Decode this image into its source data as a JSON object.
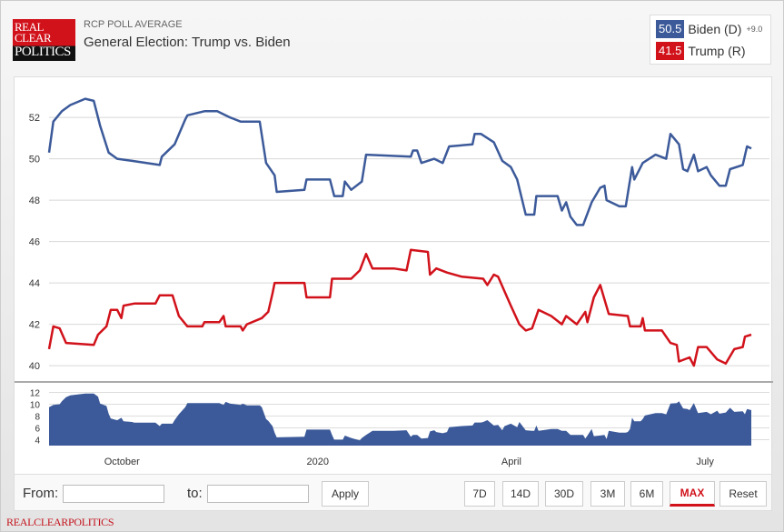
{
  "header": {
    "logo_lines": [
      "REAL",
      "CLEAR",
      "POLITICS"
    ],
    "kicker": "RCP POLL AVERAGE",
    "title": "General Election: Trump vs. Biden"
  },
  "legend": [
    {
      "value": "50.5",
      "name": "Biden (D)",
      "spread": "+9.0",
      "color": "#3c5a9a"
    },
    {
      "value": "41.5",
      "name": "Trump (R)",
      "color": "#d1121b"
    }
  ],
  "controls": {
    "from_label": "From:",
    "to_label": "to:",
    "from_value": "",
    "to_value": "",
    "apply": "Apply",
    "ranges": [
      "7D",
      "14D",
      "30D",
      "3M",
      "6M",
      "MAX",
      "Reset"
    ],
    "active": "MAX"
  },
  "footer": "REALCLEARPOLITICS",
  "chart_data": {
    "type": "line",
    "title": "",
    "xlabel": "",
    "ylabel": "",
    "ylim": [
      39.3,
      53.5
    ],
    "yticks": [
      40,
      42,
      44,
      46,
      48,
      50,
      52
    ],
    "xticks": [
      {
        "date": "2019-10-01",
        "label": "October"
      },
      {
        "date": "2020-01-01",
        "label": "2020"
      },
      {
        "date": "2020-04-01",
        "label": "April"
      },
      {
        "date": "2020-07-01",
        "label": "July"
      }
    ],
    "xlim": [
      "2019-09-01",
      "2020-07-27"
    ],
    "grid": true,
    "navigator": {
      "type": "area",
      "quantity": "Biden minus Trump spread",
      "yticks": [
        4,
        6,
        8,
        10,
        12
      ],
      "ylim": [
        3,
        13
      ],
      "color": "#3c5a9a"
    },
    "series": [
      {
        "name": "Biden (D)",
        "color": "#3c5a9a",
        "points": [
          [
            "2019-09-01",
            50.3
          ],
          [
            "2019-09-03",
            51.8
          ],
          [
            "2019-09-07",
            52.3
          ],
          [
            "2019-09-11",
            52.6
          ],
          [
            "2019-09-18",
            52.9
          ],
          [
            "2019-09-22",
            52.8
          ],
          [
            "2019-09-25",
            51.6
          ],
          [
            "2019-09-29",
            50.3
          ],
          [
            "2019-10-03",
            50.0
          ],
          [
            "2019-10-10",
            49.9
          ],
          [
            "2019-10-23",
            49.7
          ],
          [
            "2019-10-24",
            50.1
          ],
          [
            "2019-10-30",
            50.7
          ],
          [
            "2019-11-04",
            51.9
          ],
          [
            "2019-11-05",
            52.1
          ],
          [
            "2019-11-13",
            52.3
          ],
          [
            "2019-11-19",
            52.3
          ],
          [
            "2019-11-25",
            52.0
          ],
          [
            "2019-11-30",
            51.8
          ],
          [
            "2019-12-09",
            51.8
          ],
          [
            "2019-12-12",
            49.8
          ],
          [
            "2019-12-16",
            49.2
          ],
          [
            "2019-12-17",
            48.4
          ],
          [
            "2019-12-30",
            48.5
          ],
          [
            "2019-12-31",
            49.0
          ],
          [
            "2020-01-11",
            49.0
          ],
          [
            "2020-01-13",
            48.2
          ],
          [
            "2020-01-17",
            48.2
          ],
          [
            "2020-01-18",
            48.9
          ],
          [
            "2020-01-21",
            48.5
          ],
          [
            "2020-01-26",
            48.9
          ],
          [
            "2020-01-28",
            50.2
          ],
          [
            "2020-02-18",
            50.1
          ],
          [
            "2020-02-19",
            50.4
          ],
          [
            "2020-02-21",
            50.4
          ],
          [
            "2020-02-23",
            49.8
          ],
          [
            "2020-02-29",
            50.0
          ],
          [
            "2020-03-04",
            49.8
          ],
          [
            "2020-03-07",
            50.6
          ],
          [
            "2020-03-18",
            50.7
          ],
          [
            "2020-03-19",
            51.2
          ],
          [
            "2020-03-22",
            51.2
          ],
          [
            "2020-03-28",
            50.8
          ],
          [
            "2020-04-01",
            49.9
          ],
          [
            "2020-04-05",
            49.6
          ],
          [
            "2020-04-08",
            49.0
          ],
          [
            "2020-04-12",
            47.3
          ],
          [
            "2020-04-16",
            47.3
          ],
          [
            "2020-04-17",
            48.2
          ],
          [
            "2020-04-27",
            48.2
          ],
          [
            "2020-04-29",
            47.5
          ],
          [
            "2020-05-01",
            47.9
          ],
          [
            "2020-05-03",
            47.2
          ],
          [
            "2020-05-06",
            46.8
          ],
          [
            "2020-05-09",
            46.8
          ],
          [
            "2020-05-13",
            47.9
          ],
          [
            "2020-05-17",
            48.6
          ],
          [
            "2020-05-19",
            48.7
          ],
          [
            "2020-05-20",
            48.0
          ],
          [
            "2020-05-26",
            47.7
          ],
          [
            "2020-05-29",
            47.7
          ],
          [
            "2020-06-01",
            49.6
          ],
          [
            "2020-06-02",
            49.0
          ],
          [
            "2020-06-06",
            49.8
          ],
          [
            "2020-06-12",
            50.2
          ],
          [
            "2020-06-17",
            50.0
          ],
          [
            "2020-06-19",
            51.2
          ],
          [
            "2020-06-23",
            50.7
          ],
          [
            "2020-06-25",
            49.5
          ],
          [
            "2020-06-27",
            49.4
          ],
          [
            "2020-06-30",
            50.2
          ],
          [
            "2020-07-02",
            49.4
          ],
          [
            "2020-07-06",
            49.6
          ],
          [
            "2020-07-08",
            49.2
          ],
          [
            "2020-07-12",
            48.7
          ],
          [
            "2020-07-15",
            48.7
          ],
          [
            "2020-07-17",
            49.5
          ],
          [
            "2020-07-23",
            49.7
          ],
          [
            "2020-07-25",
            50.6
          ],
          [
            "2020-07-27",
            50.5
          ]
        ]
      },
      {
        "name": "Trump (R)",
        "color": "#d1121b",
        "points": [
          [
            "2019-09-01",
            40.8
          ],
          [
            "2019-09-03",
            41.9
          ],
          [
            "2019-09-06",
            41.8
          ],
          [
            "2019-09-09",
            41.1
          ],
          [
            "2019-09-22",
            41.0
          ],
          [
            "2019-09-24",
            41.5
          ],
          [
            "2019-09-28",
            41.9
          ],
          [
            "2019-09-30",
            42.7
          ],
          [
            "2019-10-03",
            42.7
          ],
          [
            "2019-10-05",
            42.3
          ],
          [
            "2019-10-06",
            42.9
          ],
          [
            "2019-10-11",
            43.0
          ],
          [
            "2019-10-21",
            43.0
          ],
          [
            "2019-10-23",
            43.4
          ],
          [
            "2019-10-29",
            43.4
          ],
          [
            "2019-11-01",
            42.4
          ],
          [
            "2019-11-05",
            41.9
          ],
          [
            "2019-11-12",
            41.9
          ],
          [
            "2019-11-13",
            42.1
          ],
          [
            "2019-11-20",
            42.1
          ],
          [
            "2019-11-22",
            42.4
          ],
          [
            "2019-11-23",
            41.9
          ],
          [
            "2019-11-30",
            41.9
          ],
          [
            "2019-12-01",
            41.7
          ],
          [
            "2019-12-03",
            42.0
          ],
          [
            "2019-12-10",
            42.3
          ],
          [
            "2019-12-13",
            42.6
          ],
          [
            "2019-12-15",
            43.5
          ],
          [
            "2019-12-16",
            44.0
          ],
          [
            "2019-12-30",
            44.0
          ],
          [
            "2019-12-31",
            43.3
          ],
          [
            "2020-01-11",
            43.3
          ],
          [
            "2020-01-12",
            44.2
          ],
          [
            "2020-01-21",
            44.2
          ],
          [
            "2020-01-25",
            44.6
          ],
          [
            "2020-01-28",
            45.4
          ],
          [
            "2020-01-31",
            44.7
          ],
          [
            "2020-02-10",
            44.7
          ],
          [
            "2020-02-16",
            44.6
          ],
          [
            "2020-02-18",
            45.6
          ],
          [
            "2020-02-26",
            45.5
          ],
          [
            "2020-02-27",
            44.4
          ],
          [
            "2020-03-01",
            44.7
          ],
          [
            "2020-03-06",
            44.5
          ],
          [
            "2020-03-13",
            44.3
          ],
          [
            "2020-03-23",
            44.2
          ],
          [
            "2020-03-25",
            43.9
          ],
          [
            "2020-03-28",
            44.4
          ],
          [
            "2020-03-30",
            44.3
          ],
          [
            "2020-04-02",
            43.6
          ],
          [
            "2020-04-05",
            42.9
          ],
          [
            "2020-04-09",
            42.0
          ],
          [
            "2020-04-12",
            41.7
          ],
          [
            "2020-04-15",
            41.8
          ],
          [
            "2020-04-18",
            42.7
          ],
          [
            "2020-04-24",
            42.4
          ],
          [
            "2020-04-29",
            42.0
          ],
          [
            "2020-05-01",
            42.4
          ],
          [
            "2020-05-06",
            42.0
          ],
          [
            "2020-05-10",
            42.6
          ],
          [
            "2020-05-11",
            42.1
          ],
          [
            "2020-05-14",
            43.3
          ],
          [
            "2020-05-17",
            43.9
          ],
          [
            "2020-05-21",
            42.5
          ],
          [
            "2020-05-30",
            42.4
          ],
          [
            "2020-05-31",
            41.9
          ],
          [
            "2020-06-05",
            41.9
          ],
          [
            "2020-06-06",
            42.3
          ],
          [
            "2020-06-07",
            41.7
          ],
          [
            "2020-06-15",
            41.7
          ],
          [
            "2020-06-19",
            41.1
          ],
          [
            "2020-06-22",
            41.0
          ],
          [
            "2020-06-23",
            40.2
          ],
          [
            "2020-06-28",
            40.4
          ],
          [
            "2020-06-30",
            40.0
          ],
          [
            "2020-07-02",
            40.9
          ],
          [
            "2020-07-06",
            40.9
          ],
          [
            "2020-07-11",
            40.3
          ],
          [
            "2020-07-15",
            40.1
          ],
          [
            "2020-07-19",
            40.8
          ],
          [
            "2020-07-23",
            40.9
          ],
          [
            "2020-07-24",
            41.4
          ],
          [
            "2020-07-27",
            41.5
          ]
        ]
      }
    ]
  }
}
